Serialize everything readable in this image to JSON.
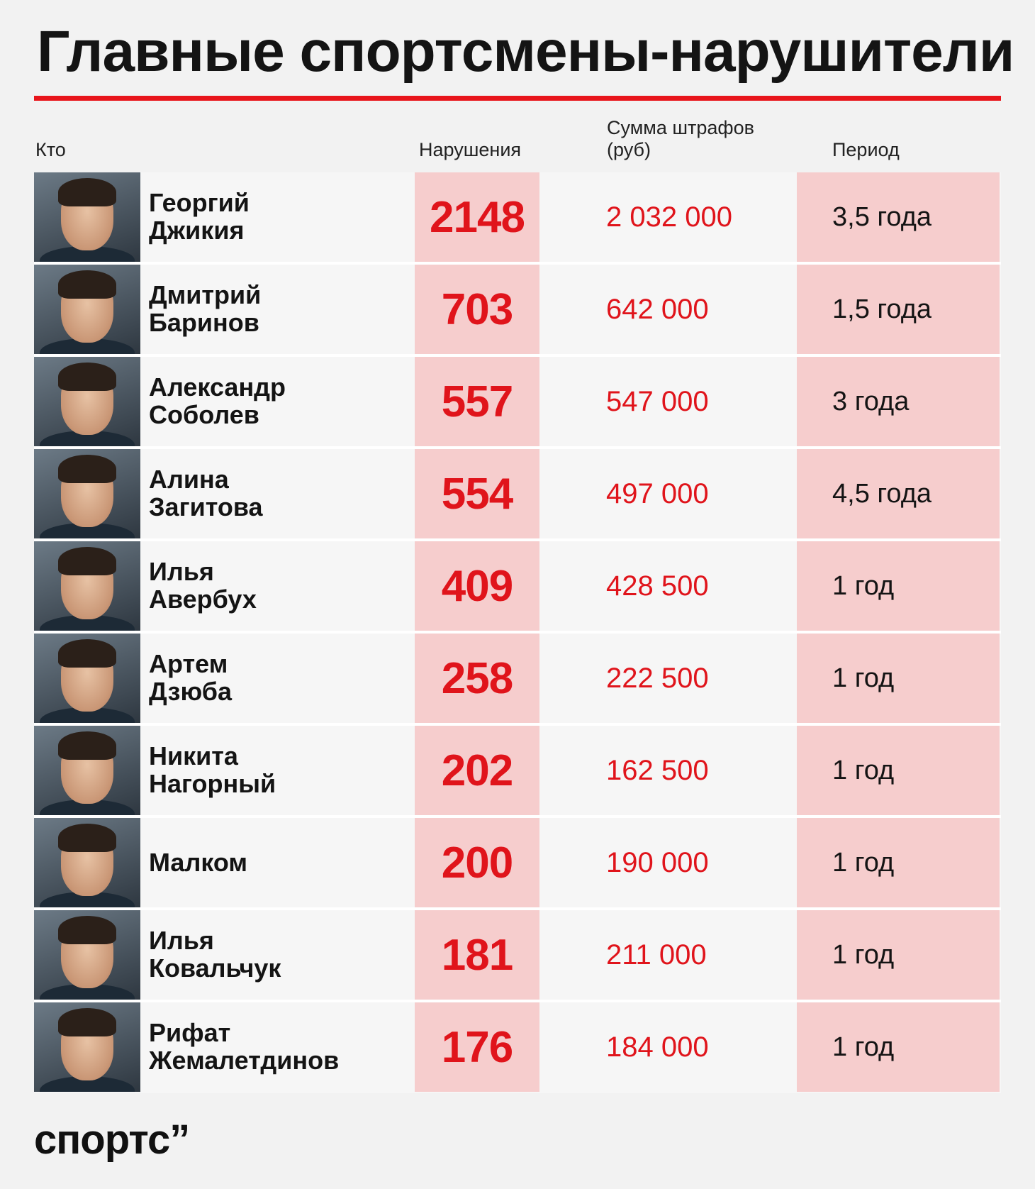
{
  "title": "Главные спортсмены-нарушители",
  "headers": {
    "who": "Кто",
    "violations": "Нарушения",
    "sum": "Сумма штрафов (руб)",
    "period": "Период"
  },
  "rows": [
    {
      "first": "Георгий",
      "last": "Джикия",
      "violations": "2148",
      "sum": "2 032 000",
      "period": "3,5 года"
    },
    {
      "first": "Дмитрий",
      "last": "Баринов",
      "violations": "703",
      "sum": "642 000",
      "period": "1,5 года"
    },
    {
      "first": "Александр",
      "last": "Соболев",
      "violations": "557",
      "sum": "547 000",
      "period": "3 года"
    },
    {
      "first": "Алина",
      "last": "Загитова",
      "violations": "554",
      "sum": "497 000",
      "period": "4,5 года"
    },
    {
      "first": "Илья",
      "last": "Авербух",
      "violations": "409",
      "sum": "428 500",
      "period": "1 год"
    },
    {
      "first": "Артем",
      "last": "Дзюба",
      "violations": "258",
      "sum": "222 500",
      "period": "1 год"
    },
    {
      "first": "Никита",
      "last": "Нагорный",
      "violations": "202",
      "sum": "162 500",
      "period": "1 год"
    },
    {
      "first": "Малком",
      "last": "",
      "violations": "200",
      "sum": "190 000",
      "period": "1 год"
    },
    {
      "first": "Илья",
      "last": "Ковальчук",
      "violations": "181",
      "sum": "211 000",
      "period": "1 год"
    },
    {
      "first": "Рифат",
      "last": "Жемалетдинов",
      "violations": "176",
      "sum": "184 000",
      "period": "1 год"
    }
  ],
  "logo": "спортс”",
  "colors": {
    "accent": "#e8151b",
    "highlight": "#f6cdcd",
    "background": "#f2f2f2"
  }
}
